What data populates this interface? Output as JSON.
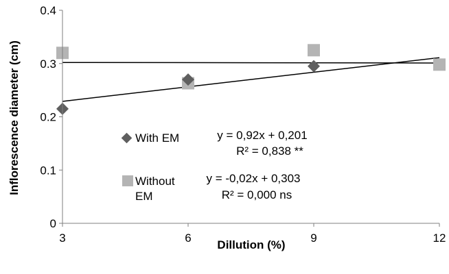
{
  "chart_data": {
    "type": "scatter",
    "xlabel": "Dillution (%)",
    "ylabel": "Inflorescence diameter (cm)",
    "xlim": [
      3,
      12
    ],
    "ylim": [
      0,
      0.4
    ],
    "xticks": [
      3,
      6,
      9,
      12
    ],
    "yticks": [
      0,
      0.1,
      0.2,
      0.3,
      0.4
    ],
    "x_tick_labels": [
      "3",
      "6",
      "9",
      "12"
    ],
    "y_tick_labels": [
      "0",
      "0.1",
      "0.2",
      "0.3",
      "0.4"
    ],
    "grid": false,
    "legend_position": "center",
    "series": [
      {
        "name": "With EM",
        "marker": "diamond",
        "color": "#5f5f5f",
        "x": [
          3,
          6,
          9
        ],
        "y": [
          0.215,
          0.27,
          0.295
        ],
        "trendline": {
          "x": [
            3,
            12
          ],
          "y": [
            0.229,
            0.311
          ]
        },
        "equation": "y = 0,92x + 0,201",
        "r2": "R² = 0,838 **"
      },
      {
        "name": "Without EM",
        "marker": "square",
        "color": "#b4b4b4",
        "x": [
          3,
          6,
          9,
          12
        ],
        "y": [
          0.32,
          0.263,
          0.325,
          0.298
        ],
        "trendline": {
          "x": [
            3,
            12
          ],
          "y": [
            0.302,
            0.301
          ]
        },
        "equation": "y = -0,02x + 0,303",
        "r2": "R² = 0,000 ns"
      }
    ]
  }
}
